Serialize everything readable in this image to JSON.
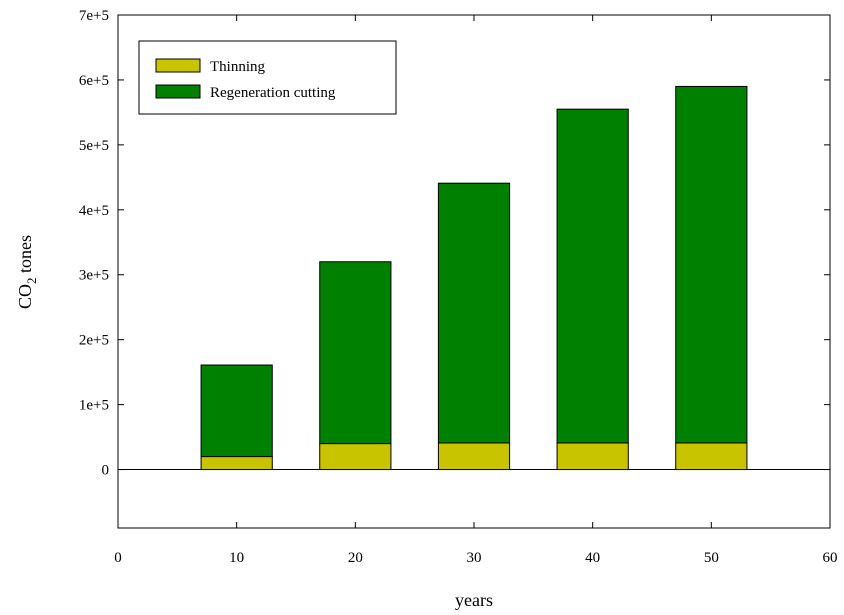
{
  "chart_data": {
    "type": "bar",
    "stacked": true,
    "x": [
      10,
      20,
      30,
      40,
      50
    ],
    "series": [
      {
        "name": "Thinning",
        "color": "#c8c400",
        "values": [
          20000,
          40000,
          41000,
          41000,
          41000
        ]
      },
      {
        "name": "Regeneration cutting",
        "color": "#008000",
        "values": [
          141000,
          280000,
          400000,
          514000,
          549000
        ]
      }
    ],
    "xlabel": "years",
    "ylabel_main": "CO",
    "ylabel_sub": "2",
    "ylabel_rest": " tones",
    "xlim": [
      0,
      60
    ],
    "ylim": [
      -90000,
      700000
    ],
    "xticks": [
      0,
      10,
      20,
      30,
      40,
      50,
      60
    ],
    "xtick_labels": [
      "0",
      "10",
      "20",
      "30",
      "40",
      "50",
      "60"
    ],
    "yticks": [
      0,
      100000,
      200000,
      300000,
      400000,
      500000,
      600000,
      700000
    ],
    "ytick_labels": [
      "0",
      "1e+5",
      "2e+5",
      "3e+5",
      "4e+5",
      "5e+5",
      "6e+5",
      "7e+5"
    ],
    "bar_width": 6,
    "zero_line": true,
    "grid": false,
    "legend_position": "top-left"
  }
}
